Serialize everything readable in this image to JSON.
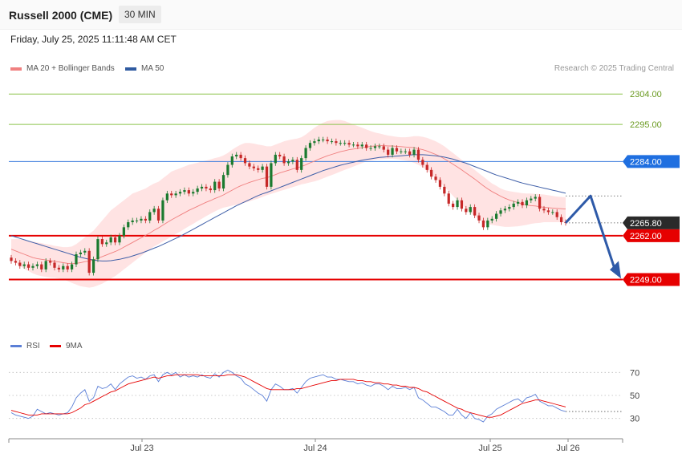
{
  "header": {
    "title": "Russell 2000 (CME)",
    "timeframe": "30 MIN"
  },
  "datetime": "Friday, July 25, 2025 11:11:48 AM CET",
  "legend": {
    "ma20": "MA 20 + Bollinger Bands",
    "ma50": "MA 50",
    "rsi": "RSI",
    "rsi9": "9MA"
  },
  "copyright": "Research © 2025 Trading Central",
  "colors": {
    "resistance": "#8bc34a",
    "pivot": "#3b7ddd",
    "support": "#e60000",
    "ma20": "#f08080",
    "ma50": "#3f5fa8",
    "band": "#ffd9d9",
    "up": "#1b7a2f",
    "down": "#c62828",
    "arrow": "#2e5aa8"
  },
  "chart_data": {
    "type": "candlestick",
    "price_axis": {
      "min": 2232,
      "max": 2310
    },
    "levels": [
      {
        "value": 2304.0,
        "label": "2304.00",
        "kind": "resistance"
      },
      {
        "value": 2295.0,
        "label": "2295.00",
        "kind": "resistance"
      },
      {
        "value": 2284.0,
        "label": "2284.00",
        "kind": "pivot"
      },
      {
        "value": 2265.8,
        "label": "2265.80",
        "kind": "last"
      },
      {
        "value": 2262.0,
        "label": "2262.00",
        "kind": "support"
      },
      {
        "value": 2249.0,
        "label": "2249.00",
        "kind": "support"
      }
    ],
    "x_ticks": [
      "Jul 23",
      "Jul 24",
      "Jul 25",
      "Jul 26"
    ],
    "close": [
      2254.5,
      2254.0,
      2253.0,
      2253.5,
      2252.5,
      2253.0,
      2253.5,
      2252.0,
      2254.5,
      2254.0,
      2252.5,
      2252.0,
      2253.0,
      2252.0,
      2253.5,
      2256.5,
      2257.0,
      2257.5,
      2251.0,
      2255.0,
      2261.0,
      2259.5,
      2260.0,
      2261.5,
      2260.0,
      2262.0,
      2264.5,
      2266.0,
      2266.5,
      2266.5,
      2267.0,
      2266.5,
      2269.0,
      2270.0,
      2266.5,
      2272.5,
      2274.5,
      2274.0,
      2274.5,
      2275.0,
      2275.5,
      2274.5,
      2275.0,
      2276.0,
      2276.5,
      2276.0,
      2275.5,
      2278.0,
      2276.0,
      2280.0,
      2283.0,
      2285.5,
      2286.0,
      2285.0,
      2283.5,
      2282.5,
      2282.0,
      2281.5,
      2282.5,
      2276.5,
      2283.5,
      2286.0,
      2285.5,
      2283.5,
      2284.0,
      2284.5,
      2281.5,
      2285.0,
      2288.0,
      2289.5,
      2290.0,
      2290.5,
      2290.5,
      2290.0,
      2290.0,
      2289.5,
      2289.5,
      2289.5,
      2289.0,
      2289.0,
      2288.5,
      2289.0,
      2288.0,
      2288.0,
      2288.5,
      2288.5,
      2287.5,
      2286.0,
      2288.0,
      2287.0,
      2287.0,
      2287.0,
      2286.0,
      2287.5,
      2284.5,
      2283.0,
      2281.5,
      2279.5,
      2278.5,
      2276.5,
      2274.5,
      2271.5,
      2270.5,
      2272.5,
      2270.0,
      2269.0,
      2270.5,
      2268.0,
      2266.5,
      2264.5,
      2266.5,
      2267.0,
      2268.5,
      2269.5,
      2270.0,
      2270.5,
      2271.5,
      2272.0,
      2271.0,
      2272.5,
      2273.0,
      2273.5,
      2270.0,
      2269.5,
      2269.0,
      2269.0,
      2267.5,
      2266.0,
      2265.8
    ],
    "open": [
      2255.5,
      2254.5,
      2254.0,
      2253.0,
      2253.5,
      2252.5,
      2253.0,
      2253.5,
      2252.0,
      2254.5,
      2254.0,
      2252.5,
      2252.0,
      2253.0,
      2252.0,
      2253.5,
      2256.5,
      2257.0,
      2257.5,
      2251.0,
      2255.0,
      2261.0,
      2259.5,
      2260.0,
      2261.5,
      2260.0,
      2262.0,
      2264.5,
      2266.0,
      2266.5,
      2266.5,
      2267.0,
      2266.5,
      2269.0,
      2270.0,
      2266.5,
      2272.5,
      2274.5,
      2274.0,
      2274.5,
      2275.0,
      2275.5,
      2274.5,
      2275.0,
      2276.0,
      2276.5,
      2276.0,
      2275.5,
      2278.0,
      2276.0,
      2280.0,
      2283.0,
      2285.5,
      2286.0,
      2285.0,
      2283.5,
      2282.5,
      2282.0,
      2281.5,
      2282.5,
      2276.5,
      2283.5,
      2286.0,
      2285.5,
      2283.5,
      2284.0,
      2284.5,
      2281.5,
      2285.0,
      2288.0,
      2289.5,
      2290.0,
      2290.5,
      2290.5,
      2290.0,
      2290.0,
      2289.5,
      2289.5,
      2289.5,
      2289.0,
      2289.0,
      2288.5,
      2289.0,
      2288.0,
      2288.0,
      2288.5,
      2288.5,
      2287.5,
      2286.0,
      2288.0,
      2287.0,
      2287.0,
      2287.0,
      2286.0,
      2287.5,
      2284.5,
      2283.0,
      2281.5,
      2279.5,
      2278.5,
      2276.5,
      2274.5,
      2271.5,
      2270.5,
      2272.5,
      2270.0,
      2269.0,
      2270.5,
      2268.0,
      2266.5,
      2264.5,
      2266.5,
      2267.0,
      2268.5,
      2269.5,
      2270.0,
      2270.5,
      2271.5,
      2272.0,
      2271.0,
      2272.5,
      2273.0,
      2273.5,
      2270.0,
      2269.5,
      2269.0,
      2269.0,
      2267.5,
      2266.0
    ],
    "ma20": [
      2258.0,
      2257.5,
      2257.0,
      2256.5,
      2256.0,
      2255.5,
      2255.2,
      2255.0,
      2254.8,
      2254.6,
      2254.4,
      2254.2,
      2254.0,
      2253.8,
      2253.7,
      2253.8,
      2254.0,
      2254.3,
      2254.5,
      2254.8,
      2255.3,
      2255.8,
      2256.3,
      2256.8,
      2257.3,
      2257.9,
      2258.6,
      2259.3,
      2260.0,
      2260.7,
      2261.4,
      2262.1,
      2262.8,
      2263.6,
      2264.3,
      2265.1,
      2265.9,
      2266.7,
      2267.4,
      2268.1,
      2268.8,
      2269.5,
      2270.1,
      2270.7,
      2271.3,
      2271.9,
      2272.4,
      2273.0,
      2273.5,
      2274.1,
      2274.8,
      2275.5,
      2276.2,
      2276.8,
      2277.3,
      2277.8,
      2278.2,
      2278.6,
      2279.0,
      2279.2,
      2279.6,
      2280.1,
      2280.6,
      2281.0,
      2281.4,
      2281.8,
      2282.1,
      2282.5,
      2283.0,
      2283.6,
      2284.1,
      2284.7,
      2285.2,
      2285.7,
      2286.1,
      2286.5,
      2286.9,
      2287.2,
      2287.5,
      2287.7,
      2287.9,
      2288.1,
      2288.3,
      2288.5,
      2288.6,
      2288.7,
      2288.7,
      2288.6,
      2288.6,
      2288.5,
      2288.4,
      2288.3,
      2288.2,
      2288.1,
      2287.8,
      2287.5,
      2287.1,
      2286.6,
      2286.1,
      2285.5,
      2284.8,
      2284.0,
      2283.2,
      2282.4,
      2281.5,
      2280.6,
      2279.7,
      2278.8,
      2277.8,
      2276.8,
      2275.9,
      2275.1,
      2274.4,
      2273.7,
      2273.1,
      2272.6,
      2272.2,
      2271.8,
      2271.4,
      2271.1,
      2270.9,
      2270.8,
      2270.6,
      2270.4,
      2270.3,
      2270.2,
      2270.1,
      2270.0,
      2269.9
    ],
    "bb_up": [
      2261.0,
      2261.0,
      2261.0,
      2260.8,
      2260.5,
      2260.3,
      2260.0,
      2259.8,
      2259.5,
      2259.3,
      2259.0,
      2258.8,
      2258.6,
      2258.6,
      2258.8,
      2259.5,
      2260.5,
      2261.5,
      2262.5,
      2263.5,
      2265.0,
      2266.5,
      2268.0,
      2269.5,
      2270.5,
      2271.5,
      2272.5,
      2273.5,
      2274.5,
      2275.0,
      2275.5,
      2276.0,
      2276.8,
      2277.5,
      2278.0,
      2279.0,
      2280.0,
      2281.0,
      2281.5,
      2282.0,
      2282.5,
      2283.0,
      2283.3,
      2283.6,
      2284.0,
      2284.3,
      2284.6,
      2285.0,
      2285.3,
      2285.8,
      2286.5,
      2287.5,
      2288.3,
      2289.0,
      2289.5,
      2289.5,
      2289.3,
      2289.0,
      2288.8,
      2288.5,
      2288.5,
      2289.0,
      2289.5,
      2290.0,
      2290.3,
      2290.6,
      2290.8,
      2291.2,
      2292.0,
      2293.0,
      2294.0,
      2294.8,
      2295.5,
      2296.0,
      2296.2,
      2296.3,
      2296.3,
      2296.0,
      2295.5,
      2295.0,
      2294.5,
      2294.0,
      2293.5,
      2293.0,
      2292.6,
      2292.3,
      2292.0,
      2291.7,
      2291.5,
      2291.3,
      2291.2,
      2291.2,
      2291.3,
      2291.5,
      2291.5,
      2291.3,
      2291.0,
      2290.5,
      2290.0,
      2289.3,
      2288.5,
      2287.5,
      2286.5,
      2285.5,
      2284.5,
      2283.5,
      2282.5,
      2281.5,
      2280.5,
      2279.5,
      2278.5,
      2277.5,
      2276.8,
      2276.0,
      2275.5,
      2275.2,
      2275.0,
      2274.8,
      2274.6,
      2274.5,
      2274.5,
      2274.4,
      2274.3,
      2274.2,
      2274.0,
      2273.8,
      2273.6,
      2273.5,
      2273.4
    ],
    "bb_lo": [
      2255.0,
      2254.0,
      2253.0,
      2252.2,
      2251.5,
      2250.8,
      2250.3,
      2250.0,
      2249.8,
      2249.6,
      2249.5,
      2249.3,
      2249.0,
      2248.6,
      2248.0,
      2247.5,
      2247.0,
      2246.8,
      2246.6,
      2246.8,
      2247.3,
      2247.8,
      2248.5,
      2249.3,
      2250.0,
      2251.0,
      2252.0,
      2253.0,
      2254.0,
      2255.0,
      2256.0,
      2257.0,
      2258.0,
      2258.8,
      2259.5,
      2260.3,
      2261.0,
      2261.8,
      2262.5,
      2263.2,
      2264.0,
      2264.8,
      2265.5,
      2266.3,
      2267.0,
      2267.8,
      2268.5,
      2269.2,
      2269.8,
      2270.3,
      2270.6,
      2270.9,
      2271.2,
      2271.5,
      2271.8,
      2272.2,
      2272.6,
      2273.0,
      2273.5,
      2274.0,
      2274.4,
      2274.8,
      2275.2,
      2275.6,
      2276.0,
      2276.4,
      2276.8,
      2277.2,
      2277.5,
      2277.8,
      2278.1,
      2278.5,
      2279.0,
      2279.5,
      2280.0,
      2280.5,
      2281.0,
      2281.5,
      2282.0,
      2282.5,
      2283.0,
      2283.5,
      2284.0,
      2284.3,
      2284.5,
      2284.6,
      2284.7,
      2284.8,
      2284.8,
      2284.7,
      2284.5,
      2284.3,
      2284.0,
      2283.6,
      2283.0,
      2282.3,
      2281.3,
      2280.3,
      2279.0,
      2277.8,
      2276.5,
      2275.2,
      2273.8,
      2272.5,
      2271.3,
      2270.0,
      2268.8,
      2267.8,
      2266.8,
      2266.0,
      2265.5,
      2265.2,
      2265.0,
      2264.8,
      2264.6,
      2264.6,
      2264.7,
      2264.8,
      2265.0,
      2265.2,
      2265.5,
      2265.7,
      2265.8,
      2266.0,
      2266.0,
      2266.0,
      2266.0,
      2266.0,
      2266.0
    ],
    "ma50": [
      2262.0,
      2261.6,
      2261.2,
      2260.8,
      2260.4,
      2260.0,
      2259.6,
      2259.2,
      2258.8,
      2258.4,
      2258.0,
      2257.6,
      2257.2,
      2256.8,
      2256.4,
      2256.0,
      2255.6,
      2255.3,
      2255.0,
      2254.8,
      2254.6,
      2254.5,
      2254.5,
      2254.6,
      2254.8,
      2255.0,
      2255.3,
      2255.6,
      2256.0,
      2256.4,
      2256.8,
      2257.3,
      2257.8,
      2258.3,
      2258.8,
      2259.4,
      2260.0,
      2260.6,
      2261.2,
      2261.8,
      2262.5,
      2263.2,
      2263.9,
      2264.6,
      2265.3,
      2266.0,
      2266.7,
      2267.4,
      2268.1,
      2268.8,
      2269.5,
      2270.2,
      2270.9,
      2271.5,
      2272.1,
      2272.7,
      2273.3,
      2273.9,
      2274.4,
      2274.8,
      2275.3,
      2275.8,
      2276.3,
      2276.8,
      2277.3,
      2277.8,
      2278.3,
      2278.8,
      2279.3,
      2279.8,
      2280.3,
      2280.8,
      2281.3,
      2281.7,
      2282.1,
      2282.5,
      2282.9,
      2283.2,
      2283.5,
      2283.8,
      2284.1,
      2284.4,
      2284.6,
      2284.8,
      2285.0,
      2285.2,
      2285.3,
      2285.4,
      2285.5,
      2285.6,
      2285.7,
      2285.8,
      2285.9,
      2286.0,
      2286.0,
      2286.0,
      2285.9,
      2285.8,
      2285.7,
      2285.5,
      2285.3,
      2285.0,
      2284.7,
      2284.3,
      2283.9,
      2283.5,
      2283.0,
      2282.5,
      2282.0,
      2281.5,
      2281.0,
      2280.5,
      2280.0,
      2279.6,
      2279.2,
      2278.8,
      2278.4,
      2278.0,
      2277.6,
      2277.3,
      2277.0,
      2276.7,
      2276.4,
      2276.1,
      2275.8,
      2275.5,
      2275.2,
      2274.9,
      2274.6
    ],
    "rsi_axis": {
      "min": 20,
      "max": 80,
      "levels": [
        70,
        50,
        30
      ]
    },
    "rsi": [
      35,
      33,
      32,
      31,
      30,
      32,
      38,
      36,
      34,
      35,
      34,
      33,
      34,
      35,
      40,
      48,
      52,
      55,
      45,
      48,
      58,
      56,
      57,
      60,
      55,
      60,
      63,
      66,
      67,
      65,
      66,
      64,
      67,
      68,
      62,
      68,
      70,
      68,
      70,
      66,
      68,
      66,
      67,
      66,
      68,
      66,
      65,
      69,
      66,
      70,
      72,
      70,
      67,
      65,
      60,
      58,
      55,
      52,
      50,
      45,
      55,
      60,
      58,
      55,
      55,
      56,
      52,
      57,
      62,
      65,
      66,
      67,
      68,
      66,
      66,
      64,
      64,
      63,
      62,
      62,
      60,
      61,
      59,
      58,
      60,
      60,
      58,
      55,
      58,
      56,
      56,
      57,
      55,
      57,
      48,
      46,
      43,
      40,
      40,
      38,
      36,
      33,
      33,
      38,
      33,
      30,
      35,
      30,
      29,
      27,
      32,
      34,
      38,
      40,
      42,
      44,
      46,
      47,
      44,
      48,
      49,
      51,
      45,
      43,
      41,
      41,
      39,
      37,
      36
    ],
    "rsi9": [
      37,
      36,
      35,
      34,
      33,
      33,
      33,
      34,
      34,
      34,
      34,
      34,
      34,
      34,
      35,
      37,
      39,
      42,
      43,
      45,
      47,
      49,
      51,
      53,
      54,
      56,
      58,
      60,
      61,
      62,
      63,
      64,
      65,
      66,
      65,
      66,
      67,
      67,
      68,
      68,
      68,
      68,
      68,
      68,
      67,
      67,
      67,
      67,
      67,
      67,
      68,
      68,
      68,
      67,
      66,
      64,
      62,
      60,
      58,
      56,
      55,
      55,
      55,
      55,
      55,
      55,
      56,
      56,
      57,
      58,
      59,
      60,
      61,
      62,
      63,
      63,
      64,
      64,
      64,
      64,
      63,
      63,
      62,
      62,
      61,
      61,
      60,
      60,
      59,
      59,
      58,
      58,
      57,
      57,
      56,
      54,
      53,
      51,
      49,
      47,
      45,
      43,
      41,
      39,
      38,
      36,
      35,
      34,
      33,
      32,
      31,
      31,
      32,
      33,
      35,
      37,
      39,
      41,
      43,
      44,
      45,
      46,
      46,
      45,
      44,
      43,
      42,
      41,
      40
    ]
  }
}
